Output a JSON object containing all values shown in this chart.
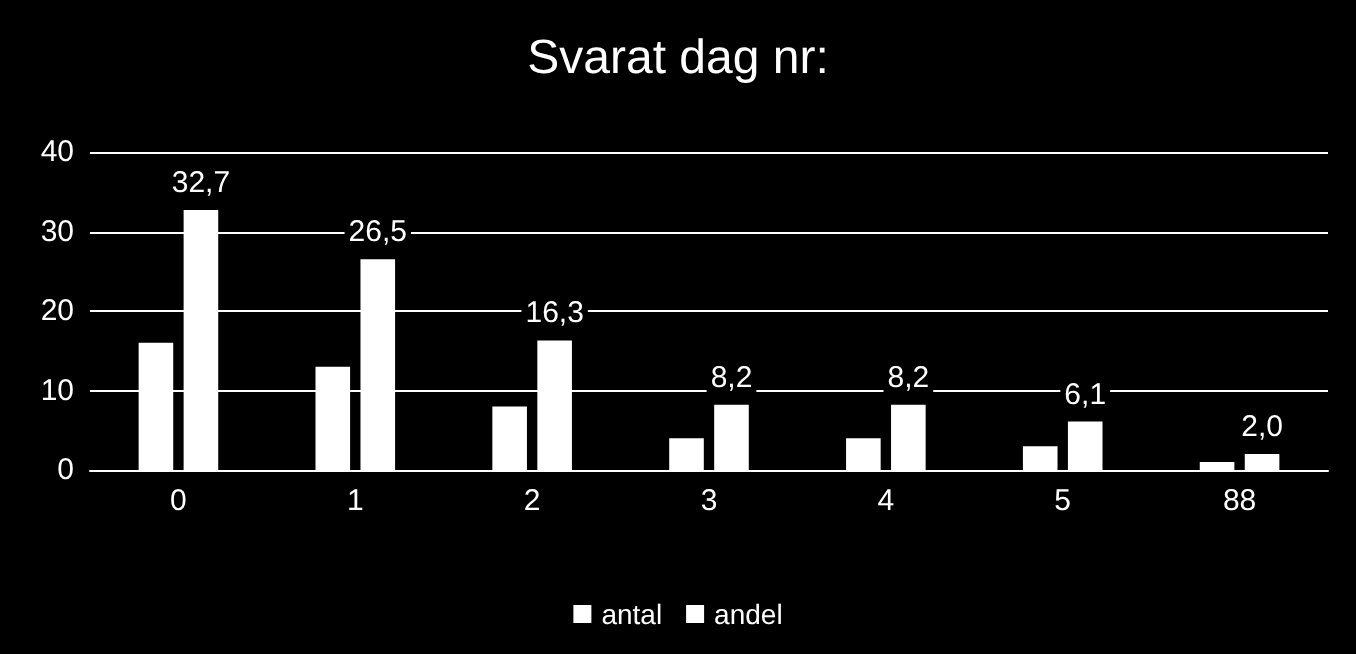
{
  "chart_data": {
    "type": "bar",
    "title": "Svarat dag nr:",
    "categories": [
      "0",
      "1",
      "2",
      "3",
      "4",
      "5",
      "88"
    ],
    "series": [
      {
        "name": "antal",
        "color": "#ffffff",
        "values": [
          16,
          13,
          8,
          4,
          4,
          3,
          1
        ]
      },
      {
        "name": "andel",
        "color": "#ffffff",
        "values": [
          32.7,
          26.5,
          16.3,
          8.2,
          8.2,
          6.1,
          2.0
        ],
        "value_labels": [
          "32,7",
          "26,5",
          "16,3",
          "8,2",
          "8,2",
          "6,1",
          "2,0"
        ]
      }
    ],
    "ylim": [
      0,
      40
    ],
    "yticks": [
      0,
      10,
      20,
      30,
      40
    ],
    "grid": "y",
    "legend": "bottom"
  }
}
